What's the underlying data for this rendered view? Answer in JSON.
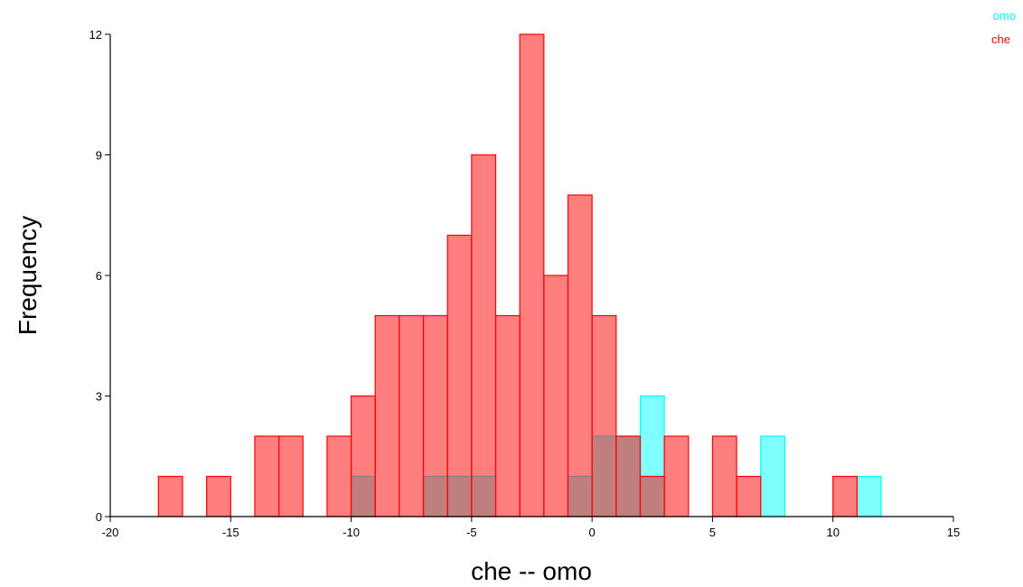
{
  "chart_data": {
    "type": "bar",
    "title": "",
    "xlabel": "che -- omo",
    "ylabel": "Frequency",
    "xlim": [
      -20,
      15
    ],
    "ylim": [
      0,
      12
    ],
    "xticks": [
      -20,
      -15,
      -10,
      -5,
      0,
      5,
      10,
      15
    ],
    "yticks": [
      0,
      3,
      6,
      9,
      12
    ],
    "bin_width": 1,
    "grid": false,
    "legend_position": "top-right",
    "series": [
      {
        "name": "omo",
        "color": "#00ffff",
        "bins": [
          {
            "start": -10,
            "count": 1
          },
          {
            "start": -7,
            "count": 1
          },
          {
            "start": -6,
            "count": 1
          },
          {
            "start": -5,
            "count": 1
          },
          {
            "start": -1,
            "count": 1
          },
          {
            "start": 0,
            "count": 2
          },
          {
            "start": 1,
            "count": 2
          },
          {
            "start": 2,
            "count": 3
          },
          {
            "start": 7,
            "count": 2
          },
          {
            "start": 11,
            "count": 1
          }
        ]
      },
      {
        "name": "che",
        "color": "#ff0000",
        "bins": [
          {
            "start": -18,
            "count": 1
          },
          {
            "start": -16,
            "count": 1
          },
          {
            "start": -14,
            "count": 2
          },
          {
            "start": -13,
            "count": 2
          },
          {
            "start": -11,
            "count": 2
          },
          {
            "start": -10,
            "count": 3
          },
          {
            "start": -9,
            "count": 5
          },
          {
            "start": -8,
            "count": 5
          },
          {
            "start": -7,
            "count": 5
          },
          {
            "start": -6,
            "count": 7
          },
          {
            "start": -5,
            "count": 9
          },
          {
            "start": -4,
            "count": 5
          },
          {
            "start": -3,
            "count": 12
          },
          {
            "start": -2,
            "count": 6
          },
          {
            "start": -1,
            "count": 8
          },
          {
            "start": 0,
            "count": 5
          },
          {
            "start": 1,
            "count": 2
          },
          {
            "start": 2,
            "count": 1
          },
          {
            "start": 3,
            "count": 2
          },
          {
            "start": 5,
            "count": 2
          },
          {
            "start": 6,
            "count": 1
          },
          {
            "start": 10,
            "count": 1
          }
        ]
      }
    ]
  }
}
